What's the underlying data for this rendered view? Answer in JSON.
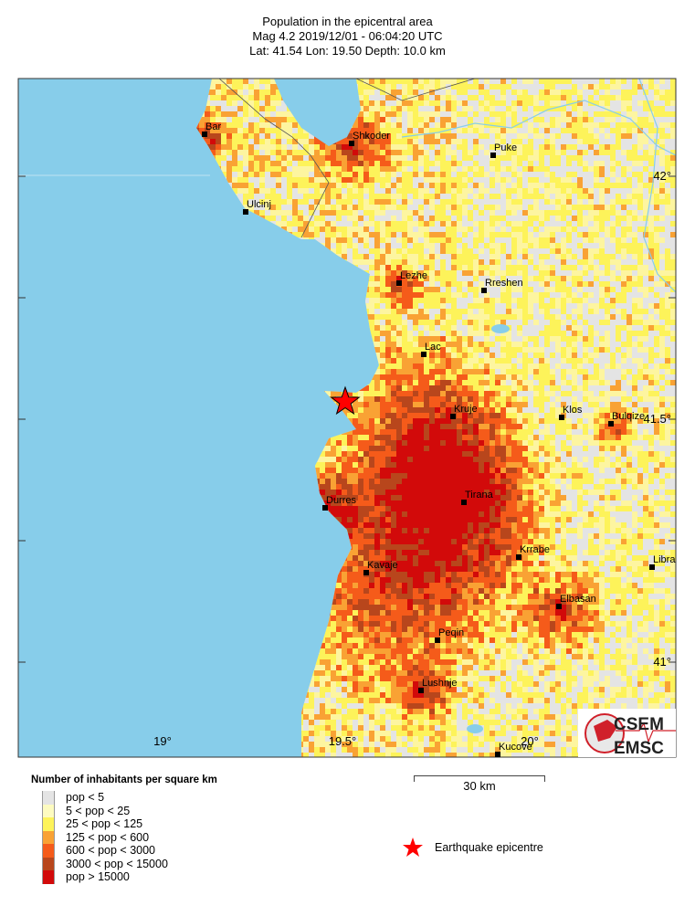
{
  "header": {
    "title": "Population in the epicentral area",
    "line2": "Mag 4.2  2019/12/01 - 06:04:20 UTC",
    "line3": "Lat: 41.54    Lon:  19.50     Depth:  10.0 km"
  },
  "map": {
    "colors": {
      "sea": "#87cdea",
      "epicentre": "#ff0000"
    },
    "lon_ticks": [
      "19°",
      "19.5°",
      "20°"
    ],
    "lat_ticks": [
      "42°",
      "41.5°",
      "41°"
    ],
    "cities": [
      "Bar",
      "Shkoder",
      "Puke",
      "Ulcinj",
      "Lezhe",
      "Rreshen",
      "Lac",
      "Kruje",
      "Klos",
      "Bulqize",
      "Tirana",
      "Durres",
      "Krrabe",
      "Libra",
      "Kavaje",
      "Elbasan",
      "Peqin",
      "Lushnje",
      "Kucove"
    ],
    "logo": {
      "top": "CSEM",
      "bottom": "EMSC"
    }
  },
  "legend": {
    "title": "Number of inhabitants per square km",
    "items": [
      {
        "label": "pop < 5",
        "color": "#e4e4e4"
      },
      {
        "label": "5 < pop < 25",
        "color": "#fdfbc0"
      },
      {
        "label": "25 < pop < 125",
        "color": "#fdf35a"
      },
      {
        "label": "125 < pop < 600",
        "color": "#f9a234"
      },
      {
        "label": "600 < pop < 3000",
        "color": "#f55b1a"
      },
      {
        "label": "3000 < pop < 15000",
        "color": "#b8461c"
      },
      {
        "label": "pop > 15000",
        "color": "#d20a0a"
      }
    ]
  },
  "scale": {
    "label": "30 km"
  },
  "epicentre_label": "Earthquake epicentre"
}
